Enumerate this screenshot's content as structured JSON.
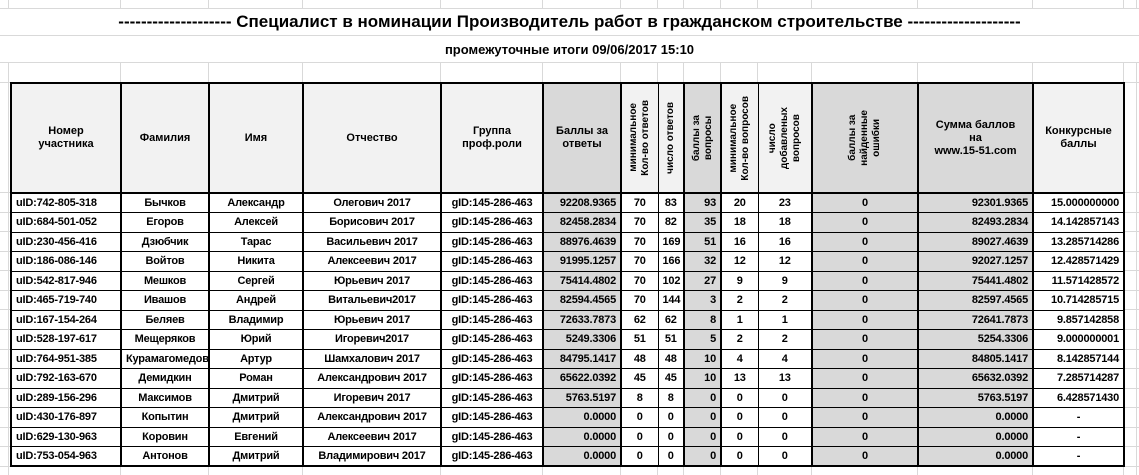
{
  "page": {
    "title": "-------------------- Специалист в номинации Производитель работ в гражданском строительстве --------------------",
    "subtitle": "промежуточные итоги 09/06/2017 15:10"
  },
  "colors": {
    "background": "#ffffff",
    "gridline": "#d9d9d9",
    "table_border": "#000000",
    "header_light": "#f2f2f2",
    "shaded_gray": "#d9d9d9",
    "text": "#000000"
  },
  "table": {
    "columns": [
      {
        "id": "participant-number",
        "label": "Номер\nучастника",
        "rotated": false,
        "shaded": false,
        "align": "left"
      },
      {
        "id": "surname",
        "label": "Фамилия",
        "rotated": false,
        "shaded": false,
        "align": "center"
      },
      {
        "id": "first-name",
        "label": "Имя",
        "rotated": false,
        "shaded": false,
        "align": "center"
      },
      {
        "id": "patronymic",
        "label": "Отчество",
        "rotated": false,
        "shaded": false,
        "align": "center"
      },
      {
        "id": "prof-role-group",
        "label": "Группа\nпроф.роли",
        "rotated": false,
        "shaded": false,
        "align": "center"
      },
      {
        "id": "answer-points",
        "label": "Баллы за\nответы",
        "rotated": false,
        "shaded": true,
        "align": "right"
      },
      {
        "id": "min-answers-count",
        "label": "минимальное\nКол-во ответов",
        "rotated": true,
        "shaded": false,
        "align": "center"
      },
      {
        "id": "answers-count",
        "label": "число ответов",
        "rotated": true,
        "shaded": false,
        "align": "center"
      },
      {
        "id": "question-points",
        "label": "баллы за\nвопросы",
        "rotated": true,
        "shaded": true,
        "align": "right"
      },
      {
        "id": "min-questions-count",
        "label": "минимальное\nКол-во вопросов",
        "rotated": true,
        "shaded": false,
        "align": "center"
      },
      {
        "id": "added-questions-count",
        "label": "число\nдобавленых\nвопросов",
        "rotated": true,
        "shaded": false,
        "align": "center"
      },
      {
        "id": "found-errors-points",
        "label": "баллы за\nнайденные\nошибки",
        "rotated": true,
        "shaded": true,
        "align": "center"
      },
      {
        "id": "points-sum",
        "label": "Сумма баллов\nна\nwww.15-51.com",
        "rotated": false,
        "shaded": true,
        "align": "right"
      },
      {
        "id": "contest-points",
        "label": "Конкурсные\nбаллы",
        "rotated": false,
        "shaded": false,
        "align": "right"
      }
    ],
    "rows": [
      [
        "uID:742-805-318",
        "Бычков",
        "Александр",
        "Олегович 2017",
        "gID:145-286-463",
        "92208.9365",
        "70",
        "83",
        "93",
        "20",
        "23",
        "0",
        "92301.9365",
        "15.000000000"
      ],
      [
        "uID:684-501-052",
        "Егоров",
        "Алексей",
        "Борисович 2017",
        "gID:145-286-463",
        "82458.2834",
        "70",
        "82",
        "35",
        "18",
        "18",
        "0",
        "82493.2834",
        "14.142857143"
      ],
      [
        "uID:230-456-416",
        "Дзюбчик",
        "Тарас",
        "Васильевич 2017",
        "gID:145-286-463",
        "88976.4639",
        "70",
        "169",
        "51",
        "16",
        "16",
        "0",
        "89027.4639",
        "13.285714286"
      ],
      [
        "uID:186-086-146",
        "Войтов",
        "Никита",
        "Алексеевич 2017",
        "gID:145-286-463",
        "91995.1257",
        "70",
        "166",
        "32",
        "12",
        "12",
        "0",
        "92027.1257",
        "12.428571429"
      ],
      [
        "uID:542-817-946",
        "Мешков",
        "Сергей",
        "Юрьевич 2017",
        "gID:145-286-463",
        "75414.4802",
        "70",
        "102",
        "27",
        "9",
        "9",
        "0",
        "75441.4802",
        "11.571428572"
      ],
      [
        "uID:465-719-740",
        "Ивашов",
        "Андрей",
        "Витальевич2017",
        "gID:145-286-463",
        "82594.4565",
        "70",
        "144",
        "3",
        "2",
        "2",
        "0",
        "82597.4565",
        "10.714285715"
      ],
      [
        "uID:167-154-264",
        "Беляев",
        "Владимир",
        "Юрьевич 2017",
        "gID:145-286-463",
        "72633.7873",
        "62",
        "62",
        "8",
        "1",
        "1",
        "0",
        "72641.7873",
        "9.857142858"
      ],
      [
        "uID:528-197-617",
        "Мещеряков",
        "Юрий",
        "Игоревич2017",
        "gID:145-286-463",
        "5249.3306",
        "51",
        "51",
        "5",
        "2",
        "2",
        "0",
        "5254.3306",
        "9.000000001"
      ],
      [
        "uID:764-951-385",
        "Курамагомедов",
        "Артур",
        "Шамхалович 2017",
        "gID:145-286-463",
        "84795.1417",
        "48",
        "48",
        "10",
        "4",
        "4",
        "0",
        "84805.1417",
        "8.142857144"
      ],
      [
        "uID:792-163-670",
        "Демидкин",
        "Роман",
        "Александрович 2017",
        "gID:145-286-463",
        "65622.0392",
        "45",
        "45",
        "10",
        "13",
        "13",
        "0",
        "65632.0392",
        "7.285714287"
      ],
      [
        "uID:289-156-296",
        "Максимов",
        "Дмитрий",
        "Игоревич 2017",
        "gID:145-286-463",
        "5763.5197",
        "8",
        "8",
        "0",
        "0",
        "0",
        "0",
        "5763.5197",
        "6.428571430"
      ],
      [
        "uID:430-176-897",
        "Копытин",
        "Дмитрий",
        "Александрович 2017",
        "gID:145-286-463",
        "0.0000",
        "0",
        "0",
        "0",
        "0",
        "0",
        "0",
        "0.0000",
        "-"
      ],
      [
        "uID:629-130-963",
        "Коровин",
        "Евгений",
        "Алексеевич 2017",
        "gID:145-286-463",
        "0.0000",
        "0",
        "0",
        "0",
        "0",
        "0",
        "0",
        "0.0000",
        "-"
      ],
      [
        "uID:753-054-963",
        "Антонов",
        "Дмитрий",
        "Владимирович 2017",
        "gID:145-286-463",
        "0.0000",
        "0",
        "0",
        "0",
        "0",
        "0",
        "0",
        "0.0000",
        "-"
      ]
    ]
  }
}
